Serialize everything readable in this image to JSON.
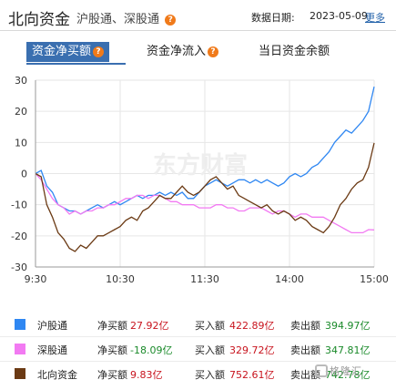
{
  "header": {
    "title": "北向资金",
    "subtitle_sh": "沪股通",
    "subtitle_sep": "、",
    "subtitle_sz": "深股通",
    "help_icon_glyph": "?",
    "date_label": "数据日期:",
    "date_value": "2023-05-09",
    "more_link": "更多"
  },
  "tabs": [
    {
      "label": "资金净买额",
      "active": true,
      "has_help": true
    },
    {
      "label": "资金净流入",
      "active": false,
      "has_help": true
    },
    {
      "label": "当日资金余额",
      "active": false,
      "has_help": false
    }
  ],
  "colors": {
    "shanghai": "#2f87f2",
    "shenzhen": "#f27af2",
    "northbound": "#6b3a14",
    "grid": "#e6e6e6",
    "tab_active": "#3a6fb0",
    "positive": "#c8141e",
    "negative": "#1a8a2a"
  },
  "chart_watermark": "东方财富",
  "chart_data": {
    "type": "line",
    "x_ticks": [
      "9:30",
      "10:30",
      "11:30",
      "14:00",
      "15:00"
    ],
    "y_ticks": [
      30,
      20,
      10,
      0,
      -10,
      -20,
      -30
    ],
    "ylim": [
      -30,
      30
    ],
    "grid": true,
    "x": [
      0,
      4,
      8,
      12,
      16,
      20,
      24,
      28,
      32,
      36,
      40,
      44,
      48,
      52,
      56,
      60,
      64,
      68,
      72,
      76,
      80,
      84,
      88,
      92,
      96,
      100,
      104,
      108,
      112,
      116,
      120,
      124,
      128,
      132,
      136,
      140,
      144,
      148,
      152,
      156,
      160,
      164,
      168,
      172,
      176,
      180,
      184,
      188,
      192,
      196,
      200,
      204,
      208,
      212,
      216,
      220,
      224,
      228,
      232,
      236,
      240
    ],
    "series": [
      {
        "name": "沪股通",
        "key": "shanghai",
        "values": [
          0,
          1,
          -4,
          -6,
          -10,
          -11,
          -12,
          -12,
          -13,
          -12,
          -11,
          -10,
          -11,
          -10,
          -9,
          -10,
          -9,
          -8,
          -7,
          -8,
          -7,
          -7,
          -6,
          -7,
          -6,
          -7,
          -6,
          -8,
          -8,
          -6,
          -4,
          -3,
          -2,
          -3,
          -4,
          -3,
          -2,
          -2,
          -3,
          -2,
          -3,
          -2,
          -3,
          -4,
          -3,
          -1,
          0,
          -1,
          0,
          2,
          3,
          5,
          7,
          10,
          12,
          14,
          13,
          15,
          17,
          20,
          27.92
        ]
      },
      {
        "name": "深股通",
        "key": "shenzhen",
        "values": [
          0,
          -2,
          -5,
          -8,
          -10,
          -11,
          -13,
          -12,
          -13,
          -12,
          -12,
          -11,
          -11,
          -10,
          -10,
          -9,
          -8,
          -8,
          -7,
          -7,
          -8,
          -7,
          -7,
          -8,
          -9,
          -9,
          -10,
          -10,
          -10,
          -11,
          -11,
          -11,
          -10,
          -10,
          -11,
          -11,
          -12,
          -12,
          -11,
          -11,
          -11,
          -12,
          -13,
          -12,
          -12,
          -13,
          -14,
          -13,
          -13,
          -14,
          -14,
          -14,
          -15,
          -16,
          -17,
          -18,
          -19,
          -19,
          -19,
          -18,
          -18.09
        ]
      },
      {
        "name": "北向资金",
        "key": "northbound",
        "values": [
          0,
          -1,
          -10,
          -14,
          -19,
          -21,
          -24,
          -25,
          -23,
          -24,
          -22,
          -20,
          -20,
          -19,
          -18,
          -17,
          -15,
          -14,
          -15,
          -12,
          -11,
          -9,
          -7,
          -8,
          -8,
          -6,
          -4,
          -6,
          -7,
          -6,
          -4,
          -2,
          -1,
          -3,
          -5,
          -4,
          -7,
          -8,
          -9,
          -10,
          -11,
          -10,
          -12,
          -13,
          -12,
          -13,
          -15,
          -14,
          -15,
          -17,
          -18,
          -19,
          -17,
          -14,
          -10,
          -8,
          -5,
          -3,
          -2,
          2,
          9.83
        ]
      }
    ]
  },
  "legend": [
    {
      "key": "shanghai",
      "name": "沪股通",
      "net_label": "净买额",
      "net_value": "27.92亿",
      "net_sign": "positive",
      "buy_label": "买入额",
      "buy_value": "422.89亿",
      "sell_label": "卖出额",
      "sell_value": "394.97亿"
    },
    {
      "key": "shenzhen",
      "name": "深股通",
      "net_label": "净买额",
      "net_value": "-18.09亿",
      "net_sign": "negative",
      "buy_label": "买入额",
      "buy_value": "329.72亿",
      "sell_label": "卖出额",
      "sell_value": "347.81亿"
    },
    {
      "key": "northbound",
      "name": "北向资金",
      "net_label": "净买额",
      "net_value": "9.83亿",
      "net_sign": "positive",
      "buy_label": "买入额",
      "buy_value": "752.61亿",
      "sell_label": "卖出额",
      "sell_value": "742.78亿"
    }
  ],
  "footer_watermark": "格隆汇"
}
